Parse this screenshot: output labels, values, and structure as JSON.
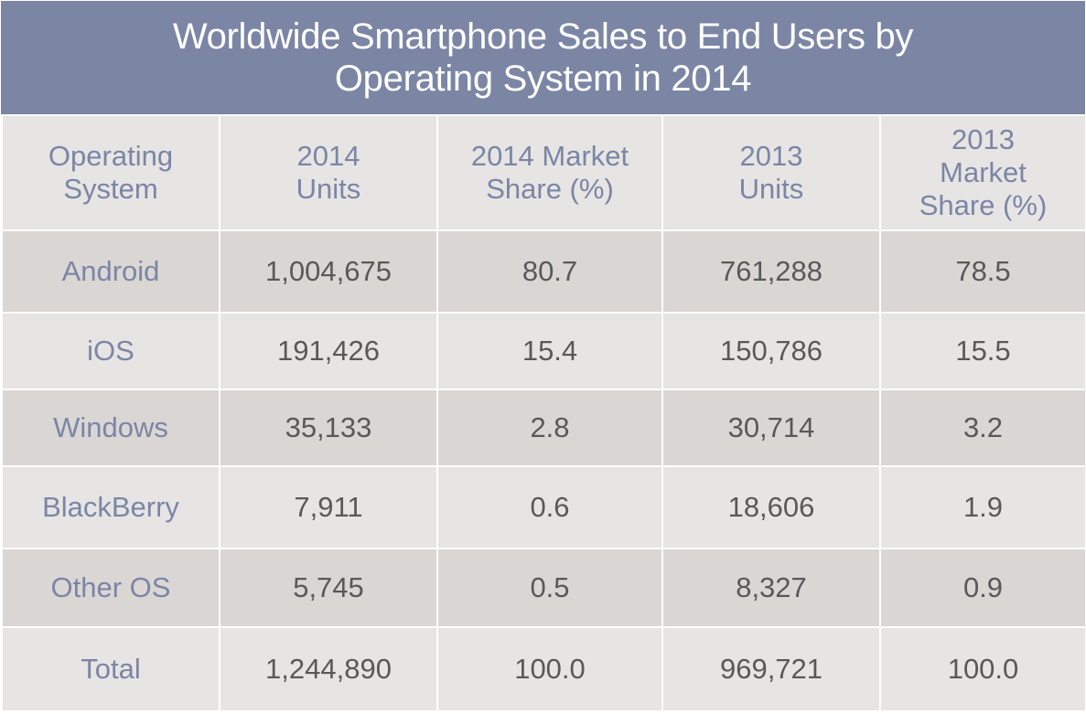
{
  "chart_data": {
    "type": "table",
    "title": "Worldwide Smartphone Sales to End Users by Operating System in 2014",
    "title_lines": [
      "Worldwide Smartphone Sales to End Users by",
      "Operating System in 2014"
    ],
    "columns": [
      {
        "key": "os",
        "label_lines": [
          "Operating",
          "System"
        ]
      },
      {
        "key": "units_2014",
        "label_lines": [
          "2014",
          "Units"
        ]
      },
      {
        "key": "share_2014",
        "label_lines": [
          "2014 Market",
          "Share (%)"
        ]
      },
      {
        "key": "units_2013",
        "label_lines": [
          "2013",
          "Units"
        ]
      },
      {
        "key": "share_2013",
        "label_lines": [
          "2013",
          "Market",
          "Share (%)"
        ]
      }
    ],
    "rows": [
      {
        "os": "Android",
        "units_2014": "1,004,675",
        "share_2014": "80.7",
        "units_2013": "761,288",
        "share_2013": "78.5"
      },
      {
        "os": "iOS",
        "units_2014": "191,426",
        "share_2014": "15.4",
        "units_2013": "150,786",
        "share_2013": "15.5"
      },
      {
        "os": "Windows",
        "units_2014": "35,133",
        "share_2014": "2.8",
        "units_2013": "30,714",
        "share_2013": "3.2"
      },
      {
        "os": "BlackBerry",
        "units_2014": "7,911",
        "share_2014": "0.6",
        "units_2013": "18,606",
        "share_2013": "1.9"
      },
      {
        "os": "Other OS",
        "units_2014": "5,745",
        "share_2014": "0.5",
        "units_2013": "8,327",
        "share_2013": "0.9"
      },
      {
        "os": "Total",
        "units_2014": "1,244,890",
        "share_2014": "100.0",
        "units_2013": "969,721",
        "share_2013": "100.0"
      }
    ]
  },
  "colors": {
    "header_bg": "#7b86a5",
    "title_text": "#ffffff",
    "label_text": "#7b86a5",
    "value_text": "#595959",
    "row_light": "#e6e5e4",
    "row_dark": "#dad6d4",
    "border": "#ffffff"
  }
}
